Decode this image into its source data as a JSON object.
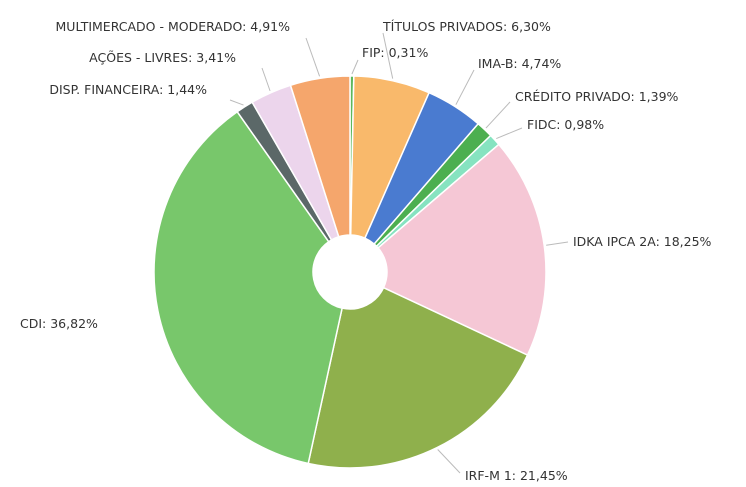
{
  "chart_data": {
    "type": "donut",
    "categories": [
      "FIP",
      "TÍTULOS PRIVADOS",
      "IMA-B",
      "CRÉDITO PRIVADO",
      "FIDC",
      "IDKA IPCA 2A",
      "IRF-M 1",
      "CDI",
      "DISP. FINANCEIRA",
      "AÇÕES - LIVRES",
      "MULTIMERCADO - MODERADO"
    ],
    "values": [
      0.31,
      6.3,
      4.74,
      1.39,
      0.98,
      18.25,
      21.45,
      36.82,
      1.44,
      3.41,
      4.91
    ],
    "value_labels": [
      "0,31%",
      "6,30%",
      "4,74%",
      "1,39%",
      "0,98%",
      "18,25%",
      "21,45%",
      "36,82%",
      "1,44%",
      "3,41%",
      "4,91%"
    ],
    "colors": [
      "#5cb85c",
      "#f9b96b",
      "#4a7bd0",
      "#4caf50",
      "#86e3c0",
      "#f5c7d5",
      "#8fb04c",
      "#78c76b",
      "#5b6868",
      "#ecd5ec",
      "#f5a66c"
    ]
  }
}
